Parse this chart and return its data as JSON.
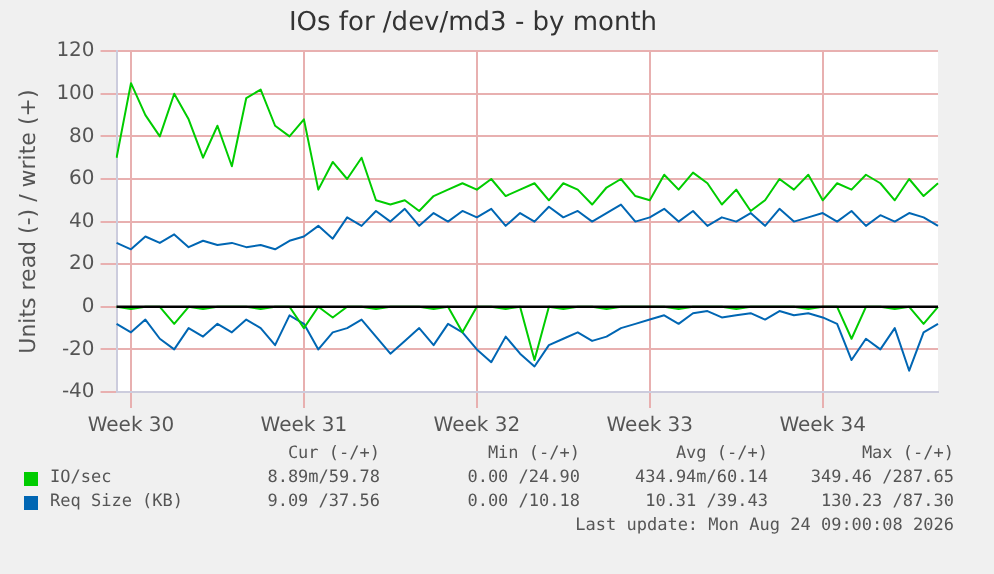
{
  "chart_data": {
    "type": "line",
    "title": "IOs for /dev/md3 - by month",
    "ylabel": "Units read (-) / write (+)",
    "categories": [
      null,
      "Week 30",
      null,
      null,
      null,
      null,
      null,
      null,
      null,
      null,
      null,
      null,
      null,
      "Week 31",
      null,
      null,
      null,
      null,
      null,
      null,
      null,
      null,
      null,
      null,
      null,
      "Week 32",
      null,
      null,
      null,
      null,
      null,
      null,
      null,
      null,
      null,
      null,
      null,
      "Week 33",
      null,
      null,
      null,
      null,
      null,
      null,
      null,
      null,
      null,
      null,
      null,
      "Week 34",
      null,
      null,
      null,
      null,
      null,
      null,
      null,
      null
    ],
    "series": [
      {
        "name": "IO/sec",
        "color": "#00cc00",
        "values": [
          70,
          105,
          90,
          80,
          100,
          88,
          70,
          85,
          66,
          98,
          102,
          85,
          80,
          88,
          55,
          68,
          60,
          70,
          50,
          48,
          50,
          45,
          52,
          55,
          58,
          55,
          60,
          52,
          55,
          58,
          50,
          58,
          55,
          48,
          56,
          60,
          52,
          50,
          62,
          55,
          63,
          58,
          48,
          55,
          45,
          50,
          60,
          55,
          62,
          50,
          58,
          55,
          62,
          58,
          50,
          60,
          52,
          58
        ]
      },
      {
        "color": "#00cc00",
        "values": [
          0,
          -1,
          0,
          0,
          -8,
          0,
          -1,
          0,
          0,
          0,
          -1,
          0,
          0,
          -10,
          0,
          -5,
          0,
          0,
          -1,
          0,
          0,
          0,
          -1,
          0,
          -12,
          0,
          0,
          -1,
          0,
          -25,
          0,
          -1,
          0,
          0,
          -1,
          0,
          0,
          0,
          0,
          -1,
          0,
          0,
          0,
          -1,
          0,
          0,
          0,
          0,
          -1,
          0,
          0,
          -15,
          0,
          0,
          -1,
          0,
          -8,
          0
        ]
      },
      {
        "name": "Req Size (KB)",
        "color": "#0066b3",
        "values": [
          30,
          27,
          33,
          30,
          34,
          28,
          31,
          29,
          30,
          28,
          29,
          27,
          31,
          33,
          38,
          32,
          42,
          38,
          45,
          40,
          46,
          38,
          44,
          40,
          45,
          42,
          46,
          38,
          44,
          40,
          47,
          42,
          45,
          40,
          44,
          48,
          40,
          42,
          46,
          40,
          45,
          38,
          42,
          40,
          44,
          38,
          46,
          40,
          42,
          44,
          40,
          45,
          38,
          43,
          40,
          44,
          42,
          38
        ]
      },
      {
        "color": "#0066b3",
        "values": [
          -8,
          -12,
          -6,
          -15,
          -20,
          -10,
          -14,
          -8,
          -12,
          -6,
          -10,
          -18,
          -4,
          -8,
          -20,
          -12,
          -10,
          -6,
          -14,
          -22,
          -16,
          -10,
          -18,
          -8,
          -12,
          -20,
          -26,
          -14,
          -22,
          -28,
          -18,
          -15,
          -12,
          -16,
          -14,
          -10,
          -8,
          -6,
          -4,
          -8,
          -3,
          -2,
          -5,
          -4,
          -3,
          -6,
          -2,
          -4,
          -3,
          -5,
          -8,
          -25,
          -15,
          -20,
          -10,
          -30,
          -12,
          -8
        ]
      }
    ],
    "ylim": [
      -40,
      120
    ],
    "yticks": [
      -40,
      -20,
      0,
      20,
      40,
      60,
      80,
      100,
      120
    ],
    "ref_lines": [
      {
        "axis": "y",
        "value": 0,
        "color": "#000000"
      }
    ],
    "grid": true,
    "legend": "bottom",
    "marker": "none",
    "line_style": "solid",
    "annotations": [
      "Cur (-/+)",
      "Min (-/+)",
      "Avg (-/+)",
      "Max (-/+)",
      "8.89m/59.78",
      "0.00 /24.90",
      "434.94m/60.14",
      "349.46 /287.65",
      "9.09 /37.56",
      "0.00 /10.18",
      "10.31 /39.43",
      "130.23 /87.30",
      "Last update: Mon Aug 24 09:00:08 2026"
    ]
  }
}
